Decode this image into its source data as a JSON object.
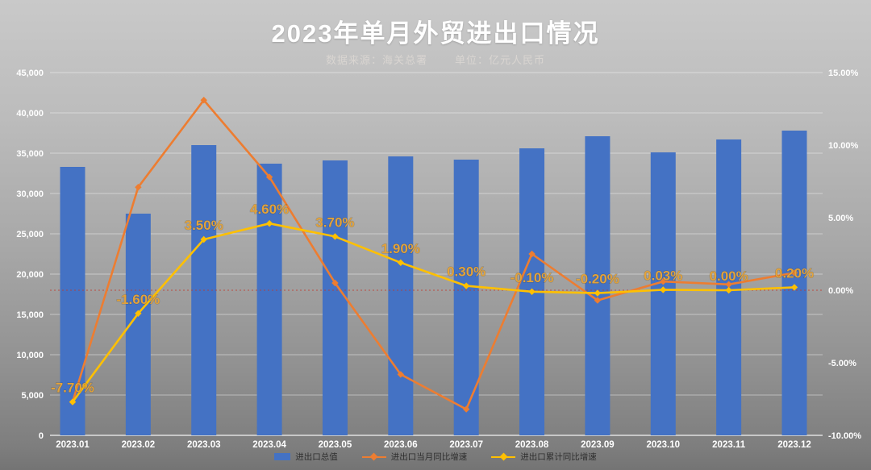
{
  "title": "2023年单月外贸进出口情况",
  "subtitle": {
    "source": "数据来源：海关总署",
    "unit": "单位：亿元人民币"
  },
  "colors": {
    "bar_blue": "#4472C4",
    "line_orange": "#ED7D31",
    "line_yellow": "#FFC000",
    "data_label_gold": "#e2a23b",
    "zero_line_red": "#c0392b",
    "axis_text": "#ffffff",
    "gridline": "rgba(255,255,255,0.42)",
    "background_top": "#c9c9c9",
    "background_bottom": "#747474"
  },
  "chart_data": {
    "type": "combo-bar-line",
    "title": "2023年单月外贸进出口情况",
    "subtitle": "数据来源：海关总署  单位：亿元人民币",
    "categories": [
      "2023.01",
      "2023.02",
      "2023.03",
      "2023.04",
      "2023.05",
      "2023.06",
      "2023.07",
      "2023.08",
      "2023.09",
      "2023.10",
      "2023.11",
      "2023.12"
    ],
    "series": [
      {
        "name": "进出口总值",
        "type": "bar",
        "axis": "left",
        "color": "#4472C4",
        "values": [
          33300,
          27500,
          36000,
          33700,
          34100,
          34600,
          34200,
          35600,
          37100,
          35100,
          36700,
          37800
        ]
      },
      {
        "name": "进出口当月同比增速",
        "type": "line",
        "axis": "right",
        "color": "#ED7D31",
        "values": [
          -7.7,
          7.1,
          13.1,
          7.8,
          0.5,
          -5.8,
          -8.2,
          2.5,
          -0.7,
          0.6,
          0.4,
          1.2
        ]
      },
      {
        "name": "进出口累计同比增速",
        "type": "line",
        "axis": "right",
        "color": "#FFC000",
        "values": [
          -7.7,
          -1.6,
          3.5,
          4.6,
          3.7,
          1.9,
          0.3,
          -0.1,
          -0.2,
          0.03,
          0.0,
          0.2
        ],
        "point_labels": [
          "-7.70%",
          "-1.60%",
          "3.50%",
          "4.60%",
          "3.70%",
          "1.90%",
          "0.30%",
          "-0.10%",
          "-0.20%",
          "0.03%",
          "0.00%",
          "0.20%"
        ]
      }
    ],
    "left_axis": {
      "min": 0,
      "max": 45000,
      "step": 5000,
      "tick_labels": [
        "45,000",
        "40,000",
        "35,000",
        "30,000",
        "25,000",
        "20,000",
        "15,000",
        "10,000",
        "5,000",
        "0"
      ]
    },
    "right_axis": {
      "min": -10,
      "max": 15,
      "step": 5,
      "tick_labels": [
        "15.00%",
        "10.00%",
        "5.00%",
        "0.00%",
        "-5.00%",
        "-10.00%"
      ]
    },
    "zero_reference_line": {
      "value": 0,
      "color": "#c0392b",
      "style": "dotted"
    },
    "grid": true,
    "legend_position": "bottom",
    "legend": [
      "进出口总值",
      "进出口当月同比增速",
      "进出口累计同比增速"
    ]
  }
}
